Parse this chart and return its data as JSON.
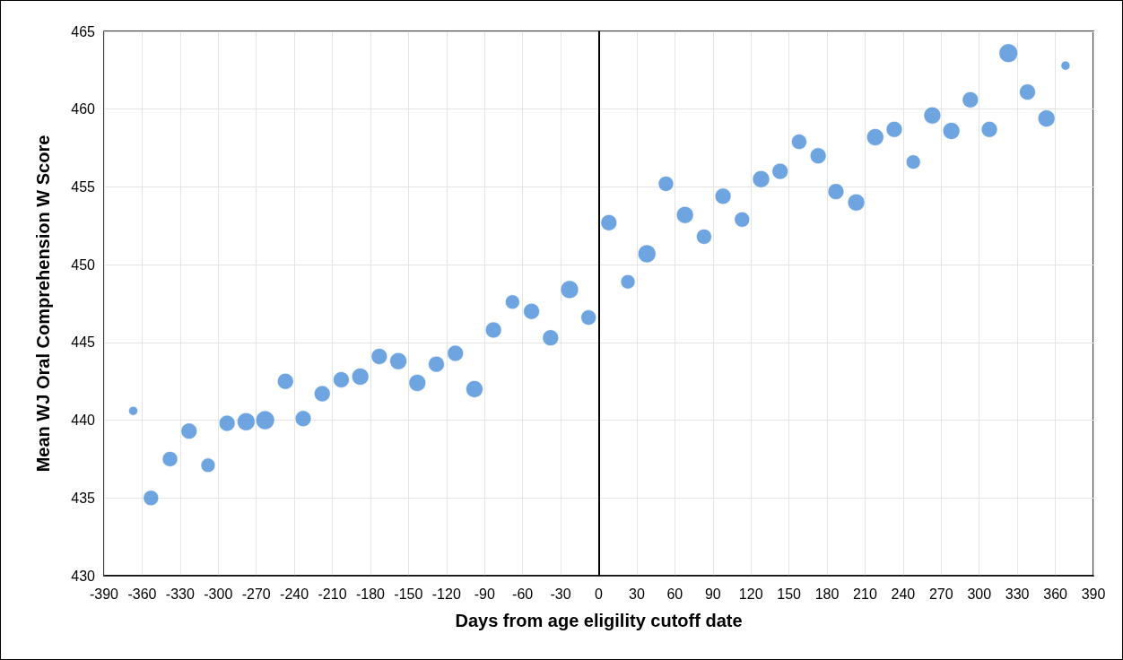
{
  "chart_data": {
    "type": "bubble",
    "xlabel": "Days from age eligility cutoff date",
    "ylabel": "Mean WJ Oral Comprehension W Score",
    "xlim": [
      -390,
      390
    ],
    "xticks": [
      -390,
      -360,
      -330,
      -300,
      -270,
      -240,
      -210,
      -180,
      -150,
      -120,
      -90,
      -60,
      -30,
      0,
      30,
      60,
      90,
      120,
      150,
      180,
      210,
      240,
      270,
      300,
      330,
      360,
      390
    ],
    "ylim": [
      430,
      465
    ],
    "yticks": [
      430,
      435,
      440,
      445,
      450,
      455,
      460,
      465
    ],
    "grid": true,
    "marker": "circle",
    "ref_lines": [
      {
        "axis": "x",
        "value": 0,
        "color": "#000000",
        "line_style": "solid"
      }
    ],
    "series": [
      {
        "color": "#4a8fd8",
        "x": [
          -367,
          -353,
          -338,
          -323,
          -308,
          -293,
          -278,
          -263,
          -247,
          -233,
          -218,
          -203,
          -188,
          -173,
          -158,
          -143,
          -128,
          -113,
          -98,
          -83,
          -68,
          -53,
          -38,
          -23,
          -8,
          8,
          23,
          38,
          53,
          68,
          83,
          98,
          113,
          128,
          143,
          158,
          173,
          187,
          203,
          218,
          233,
          248,
          263,
          278,
          293,
          308,
          323,
          338,
          353,
          368
        ],
        "values": [
          440.6,
          435.0,
          437.5,
          439.3,
          437.1,
          439.8,
          439.9,
          440.0,
          442.5,
          440.1,
          441.7,
          442.6,
          442.8,
          444.1,
          443.8,
          442.4,
          443.6,
          444.3,
          442.0,
          445.8,
          447.6,
          447.0,
          445.3,
          448.4,
          446.6,
          452.7,
          448.9,
          450.7,
          455.2,
          453.2,
          451.8,
          454.4,
          452.9,
          455.5,
          456.0,
          457.9,
          457.0,
          454.7,
          454.0,
          458.2,
          458.7,
          456.6,
          459.6,
          458.6,
          460.6,
          458.7,
          463.6,
          461.1,
          459.4,
          462.8
        ],
        "sizes": [
          0.23,
          0.66,
          0.66,
          0.73,
          0.58,
          0.73,
          0.91,
          1,
          0.73,
          0.73,
          0.73,
          0.73,
          0.82,
          0.73,
          0.82,
          0.82,
          0.73,
          0.73,
          0.82,
          0.73,
          0.58,
          0.73,
          0.73,
          0.91,
          0.66,
          0.73,
          0.58,
          0.91,
          0.66,
          0.82,
          0.66,
          0.73,
          0.66,
          0.82,
          0.73,
          0.66,
          0.73,
          0.73,
          0.82,
          0.82,
          0.73,
          0.58,
          0.82,
          0.82,
          0.73,
          0.73,
          1,
          0.73,
          0.82,
          0.23
        ]
      }
    ]
  }
}
